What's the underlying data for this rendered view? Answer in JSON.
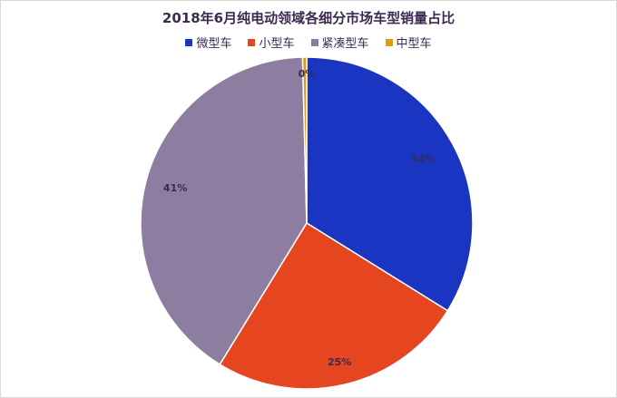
{
  "chart_data": {
    "type": "pie",
    "title": "2018年6月纯电动领域各细分市场车型销量占比",
    "series": [
      {
        "name": "微型车",
        "value": 34,
        "label": "34%",
        "color": "#1a35c1"
      },
      {
        "name": "小型车",
        "value": 25,
        "label": "25%",
        "color": "#e5451f"
      },
      {
        "name": "紧凑型车",
        "value": 41,
        "label": "41%",
        "color": "#8d7da0"
      },
      {
        "name": "中型车",
        "value": 0.4,
        "label": "0%",
        "color": "#e39a12"
      }
    ],
    "legend_position": "top"
  }
}
